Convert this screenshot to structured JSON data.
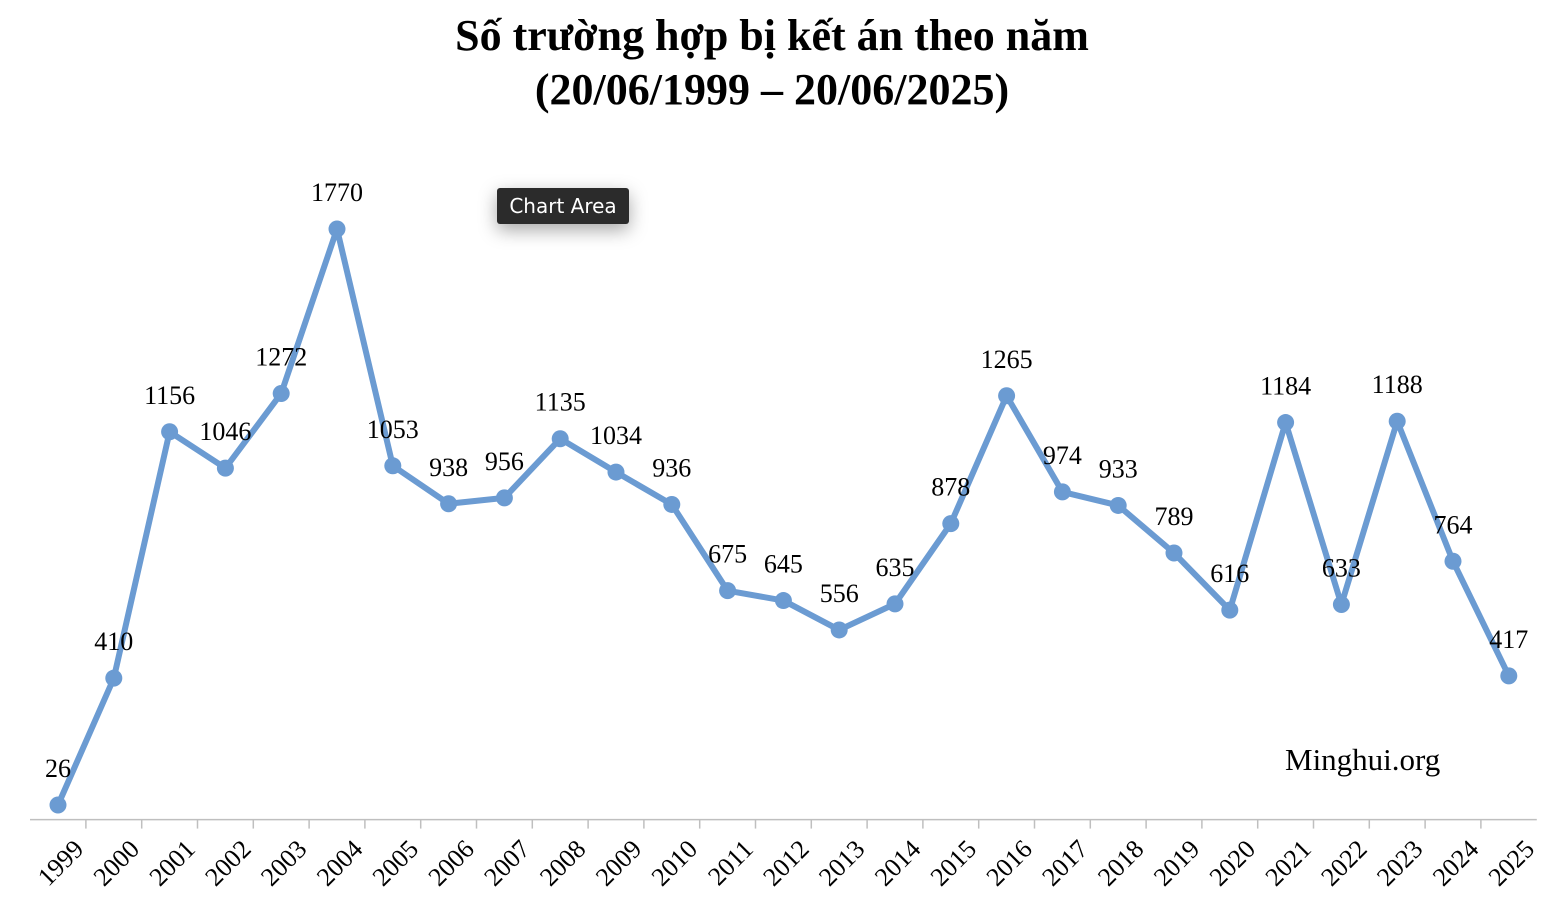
{
  "chart_data": {
    "type": "line",
    "title": "Số trường hợp bị kết án theo năm",
    "subtitle": "(20/06/1999 – 20/06/2025)",
    "x": [
      "1999",
      "2000",
      "2001",
      "2002",
      "2003",
      "2004",
      "2005",
      "2006",
      "2007",
      "2008",
      "2009",
      "2010",
      "2011",
      "2012",
      "2013",
      "2014",
      "2015",
      "2016",
      "2017",
      "2018",
      "2019",
      "2020",
      "2021",
      "2022",
      "2023",
      "2024",
      "2025"
    ],
    "values": [
      26,
      410,
      1156,
      1046,
      1272,
      1770,
      1053,
      938,
      956,
      1135,
      1034,
      936,
      675,
      645,
      556,
      635,
      878,
      1265,
      974,
      933,
      789,
      616,
      1184,
      633,
      1188,
      764,
      417
    ],
    "xlabel": "",
    "ylabel": "",
    "ylim": [
      0,
      1900
    ],
    "grid": false,
    "line_color": "#6b9bd2",
    "watermark": "Minghui.org",
    "tooltip": "Chart Area"
  }
}
